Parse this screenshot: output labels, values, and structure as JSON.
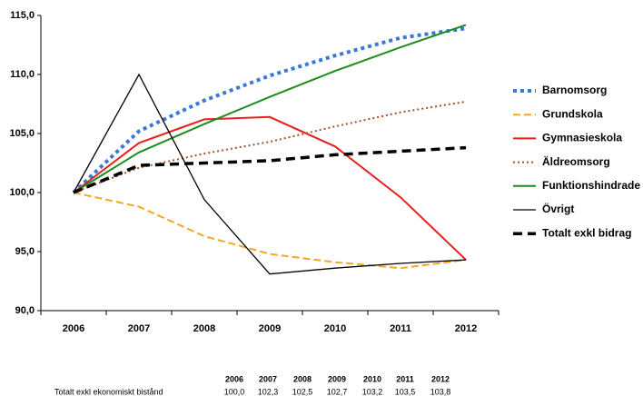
{
  "chart_data": {
    "type": "line",
    "categories": [
      "2006",
      "2007",
      "2008",
      "2009",
      "2010",
      "2011",
      "2012"
    ],
    "ylim": [
      90,
      115
    ],
    "yticks": [
      {
        "value": 90,
        "label": "90,0"
      },
      {
        "value": 95,
        "label": "95,0"
      },
      {
        "value": 100,
        "label": "100,0"
      },
      {
        "value": 105,
        "label": "105,0"
      },
      {
        "value": 110,
        "label": "110,0"
      },
      {
        "value": 115,
        "label": "115,0"
      }
    ],
    "legend": "right",
    "series": [
      {
        "name": "Barnomsorg",
        "color": "#3a78d8",
        "linestyle": "dotted",
        "values": [
          100,
          105.2,
          107.8,
          109.9,
          111.6,
          113.1,
          113.9
        ]
      },
      {
        "name": "Grundskola",
        "color": "#f5a623",
        "linestyle": "dashed",
        "values": [
          100,
          98.8,
          96.3,
          94.8,
          94.1,
          93.6,
          94.3
        ]
      },
      {
        "name": "Gymnasieskola",
        "color": "#e8201c",
        "linestyle": "solid",
        "values": [
          100,
          104.2,
          106.2,
          106.4,
          103.9,
          99.6,
          94.3
        ]
      },
      {
        "name": "Äldreomsorg",
        "color": "#a0522d",
        "linestyle": "dotted",
        "values": [
          100,
          102.1,
          103.3,
          104.3,
          105.6,
          106.8,
          107.7
        ]
      },
      {
        "name": "Funktionshindrade",
        "color": "#1e8c1e",
        "linestyle": "solid",
        "values": [
          100,
          103.4,
          105.8,
          108.1,
          110.3,
          112.3,
          114.2
        ]
      },
      {
        "name": "Övrigt",
        "color": "#000000",
        "linestyle": "solid",
        "values": [
          100,
          110,
          99.4,
          93.1,
          93.6,
          94.0,
          94.3
        ]
      },
      {
        "name": "Totalt exkl bidrag",
        "color": "#000000",
        "linestyle": "dashed",
        "values": [
          100,
          102.3,
          102.5,
          102.7,
          103.2,
          103.5,
          103.8
        ]
      }
    ]
  },
  "table": {
    "header": [
      "2006",
      "2007",
      "2008",
      "2009",
      "2010",
      "2011",
      "2012"
    ],
    "rows": [
      [
        "Totalt exkl ekonomiskt bistånd",
        "100,0",
        "102,3",
        "102,5",
        "102,7",
        "103,2",
        "103,5",
        "103,8"
      ]
    ]
  }
}
